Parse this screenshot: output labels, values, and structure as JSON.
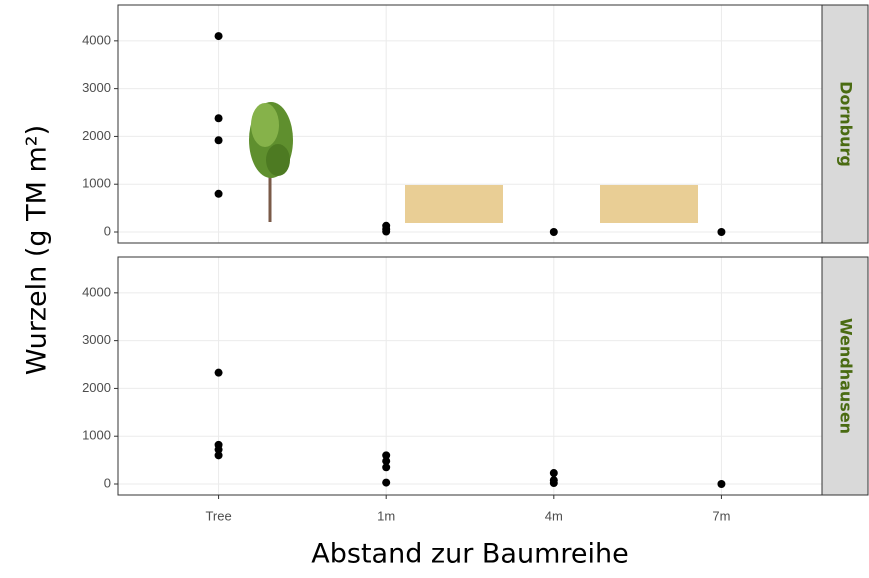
{
  "x_label": "Abstand zur Baumreihe",
  "y_label": "Wurzeln (g TM m²)",
  "categories": [
    "Tree",
    "1m",
    "4m",
    "7m"
  ],
  "chart_data": [
    {
      "type": "scatter",
      "facet": "Dornburg",
      "x": [
        "Tree",
        "Tree",
        "Tree",
        "Tree",
        "1m",
        "1m",
        "1m",
        "4m",
        "7m"
      ],
      "values": [
        4100,
        2380,
        1920,
        800,
        130,
        60,
        10,
        0,
        0
      ],
      "color": "#000000",
      "ylim": [
        -230,
        4750
      ],
      "yticks": [
        0,
        1000,
        2000,
        3000,
        4000
      ],
      "grid": true
    },
    {
      "type": "scatter",
      "facet": "Wendhausen",
      "x": [
        "Tree",
        "Tree",
        "Tree",
        "Tree",
        "1m",
        "1m",
        "1m",
        "1m",
        "4m",
        "4m",
        "4m",
        "7m"
      ],
      "values": [
        2330,
        820,
        720,
        600,
        600,
        480,
        350,
        30,
        230,
        80,
        20,
        0
      ],
      "color": "#000000",
      "ylim": [
        -230,
        4750
      ],
      "yticks": [
        0,
        1000,
        2000,
        3000,
        4000
      ],
      "grid": true
    }
  ]
}
